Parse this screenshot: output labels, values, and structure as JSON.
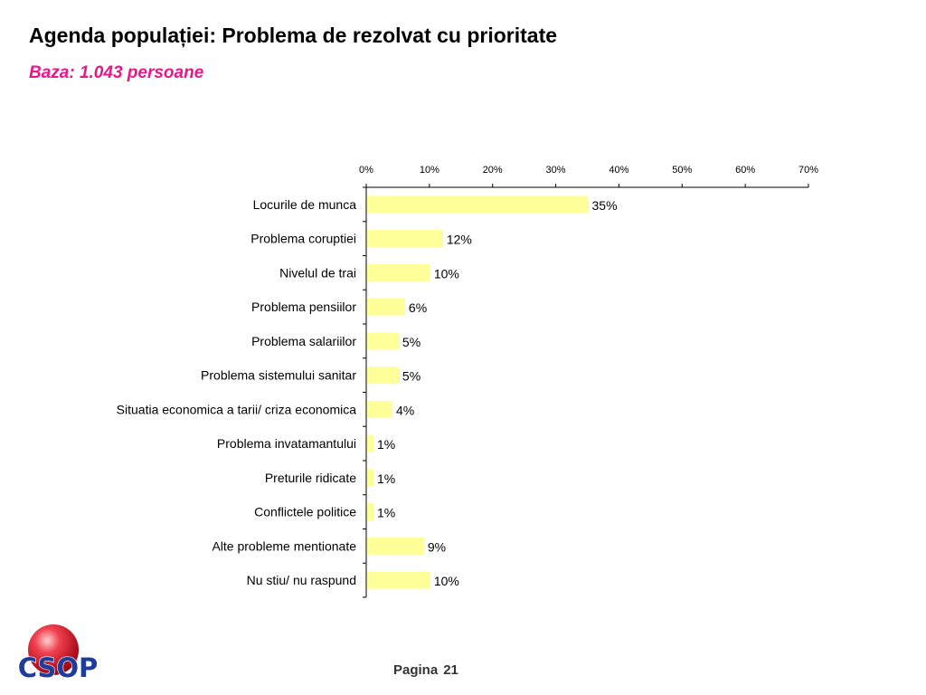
{
  "title": "Agenda populației: Problema de rezolvat cu prioritate",
  "subtitle": "Baza: 1.043 persoane",
  "colors": {
    "subtitle": "#e8178a",
    "bar_fill": "#ffff99",
    "axis": "#000000",
    "logo_red": "#e8102a",
    "logo_blue": "#1f3c9a"
  },
  "chart_data": {
    "type": "bar",
    "orientation": "horizontal",
    "title": "",
    "xlabel": "",
    "ylabel": "",
    "xlim": [
      0,
      70
    ],
    "x_ticks": [
      "0%",
      "10%",
      "20%",
      "30%",
      "40%",
      "50%",
      "60%",
      "70%"
    ],
    "axis_position": "top",
    "categories": [
      "Locurile de munca",
      "Problema coruptiei",
      "Nivelul de trai",
      "Problema pensiilor",
      "Problema salariilor",
      "Problema sistemului sanitar",
      "Situatia economica a tarii/ criza economica",
      "Problema invatamantului",
      "Preturile ridicate",
      "Conflictele politice",
      "Alte probleme mentionate",
      "Nu stiu/ nu raspund"
    ],
    "values": [
      35,
      12,
      10,
      6,
      5,
      5,
      4,
      1,
      1,
      1,
      9,
      10
    ],
    "value_labels": [
      "35%",
      "12%",
      "10%",
      "6%",
      "5%",
      "5%",
      "4%",
      "1%",
      "1%",
      "1%",
      "9%",
      "10%"
    ]
  },
  "footer": {
    "page_word": "Pagina",
    "page_number": "21"
  },
  "logo": {
    "text": "CSOP"
  }
}
